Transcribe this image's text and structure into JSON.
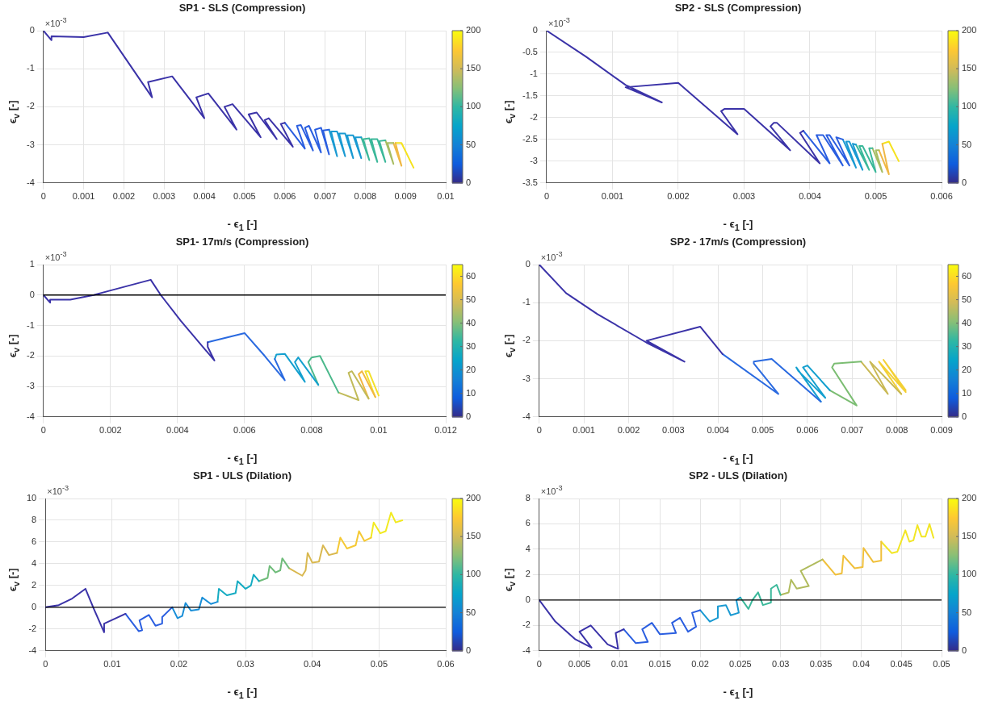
{
  "chart_data": [
    {
      "type": "line",
      "title": "SP1 - SLS (Compression)",
      "xlabel": "- ϵ$_{1}$ [-]",
      "ylabel": "ϵ$_{v}$ [-]",
      "annotations": [
        "×10$^{-3}$"
      ],
      "xlim": [
        0,
        0.01
      ],
      "xticks": [
        0,
        0.001,
        0.002,
        0.003,
        0.004,
        0.005,
        0.006,
        0.007,
        0.008,
        0.009,
        0.01
      ],
      "ylim": [
        -4,
        0
      ],
      "yticks": [
        -4,
        -3,
        -2,
        -1,
        0
      ],
      "grid": true,
      "clim": [
        0,
        200
      ],
      "cticks": [
        0,
        50,
        100,
        150,
        200
      ],
      "series": [
        {
          "color": "#3b33a8",
          "x": [
            0,
            0.0002,
            0.0002,
            0.001,
            0.0016,
            0.0027,
            0.0026,
            0.0032,
            0.004,
            0.0038,
            0.0041,
            0.0048,
            0.0045,
            0.0047,
            0.0054,
            0.0051,
            0.0053,
            0.0058,
            0.0055,
            0.0056,
            0.0062,
            0.0059,
            0.006
          ],
          "values": [
            0,
            -0.25,
            -0.15,
            -0.17,
            -0.05,
            -1.75,
            -1.35,
            -1.2,
            -2.3,
            -1.75,
            -1.65,
            -2.6,
            -2,
            -1.93,
            -2.8,
            -2.2,
            -2.15,
            -2.85,
            -2.35,
            -2.3,
            -3.05,
            -2.45,
            -2.42
          ]
        },
        {
          "color": "#2a5ee0",
          "x": [
            0.006,
            0.0065,
            0.0063,
            0.0064,
            0.0067,
            0.0065,
            0.0066,
            0.0069,
            0.00675,
            0.0069,
            0.0071,
            0.00695,
            0.0071
          ],
          "values": [
            -2.42,
            -3.1,
            -2.5,
            -2.48,
            -3.15,
            -2.55,
            -2.5,
            -3.2,
            -2.6,
            -2.55,
            -3.25,
            -2.62,
            -2.6
          ]
        },
        {
          "color": "#1a9ad2",
          "x": [
            0.0071,
            0.0073,
            0.00715,
            0.0073,
            0.0075,
            0.00735,
            0.0075,
            0.0077,
            0.00755,
            0.0077,
            0.0079,
            0.00775,
            0.0079
          ],
          "values": [
            -2.6,
            -3.3,
            -2.65,
            -2.65,
            -3.3,
            -2.7,
            -2.7,
            -3.35,
            -2.75,
            -2.75,
            -3.35,
            -2.8,
            -2.8
          ]
        },
        {
          "color": "#3bb89a",
          "x": [
            0.0079,
            0.0081,
            0.00795,
            0.0081,
            0.0083,
            0.00815,
            0.0083,
            0.0085,
            0.00835,
            0.0085
          ],
          "values": [
            -2.8,
            -3.4,
            -2.85,
            -2.83,
            -3.45,
            -2.85,
            -2.85,
            -3.45,
            -2.9,
            -2.88
          ]
        },
        {
          "color": "#a8bd62",
          "x": [
            0.0085,
            0.0087,
            0.00855,
            0.0087
          ],
          "values": [
            -2.88,
            -3.5,
            -2.95,
            -2.95
          ]
        },
        {
          "color": "#f0b845",
          "x": [
            0.0087,
            0.0089,
            0.00875
          ],
          "values": [
            -2.95,
            -3.55,
            -2.95
          ]
        },
        {
          "color": "#f5e21e",
          "x": [
            0.00875,
            0.0089,
            0.0092
          ],
          "values": [
            -2.95,
            -2.95,
            -3.6
          ]
        }
      ]
    },
    {
      "type": "line",
      "title": "SP2 - SLS (Compression)",
      "xlabel": "- ϵ$_{1}$ [-]",
      "ylabel": "ϵ$_{v}$ [-]",
      "annotations": [
        "×10$^{-3}$"
      ],
      "xlim": [
        0,
        0.006
      ],
      "xticks": [
        0,
        0.001,
        0.002,
        0.003,
        0.004,
        0.005,
        0.006
      ],
      "ylim": [
        -3.5,
        0
      ],
      "yticks": [
        -3.5,
        -3,
        -2.5,
        -2,
        -1.5,
        -1,
        -0.5,
        0
      ],
      "grid": true,
      "clim": [
        0,
        200
      ],
      "cticks": [
        0,
        50,
        100,
        150,
        200
      ],
      "series": [
        {
          "color": "#3b33a8",
          "x": [
            0,
            0.0006,
            0.0012,
            0.00175,
            0.0012,
            0.002,
            0.0029,
            0.00265,
            0.0027,
            0.003,
            0.0037,
            0.0034,
            0.00345,
            0.0035,
            0.00415,
            0.00385,
            0.0039
          ],
          "values": [
            0,
            -0.6,
            -1.25,
            -1.65,
            -1.3,
            -1.2,
            -2.38,
            -1.85,
            -1.8,
            -1.8,
            -2.75,
            -2.2,
            -2.12,
            -2.12,
            -3.05,
            -2.35,
            -2.3
          ]
        },
        {
          "color": "#2a5ee0",
          "x": [
            0.0039,
            0.0043,
            0.0041,
            0.0042,
            0.0045,
            0.00425,
            0.0043,
            0.0046,
            0.0044,
            0.0045
          ],
          "values": [
            -2.3,
            -3.05,
            -2.4,
            -2.4,
            -3.1,
            -2.4,
            -2.4,
            -3.1,
            -2.45,
            -2.5
          ]
        },
        {
          "color": "#1a9ad2",
          "x": [
            0.0045,
            0.0047,
            0.00455,
            0.0046,
            0.0048,
            0.00465,
            0.0047
          ],
          "values": [
            -2.5,
            -3.15,
            -2.55,
            -2.55,
            -3.2,
            -2.6,
            -2.62
          ]
        },
        {
          "color": "#3bb89a",
          "x": [
            0.0047,
            0.0049,
            0.00475,
            0.0048,
            0.005,
            0.0049,
            0.00495
          ],
          "values": [
            -2.62,
            -3.2,
            -2.65,
            -2.65,
            -3.25,
            -2.7,
            -2.7
          ]
        },
        {
          "color": "#a8bd62",
          "x": [
            0.00495,
            0.0051,
            0.005,
            0.00505
          ],
          "values": [
            -2.7,
            -3.25,
            -2.75,
            -2.75
          ]
        },
        {
          "color": "#f0b845",
          "x": [
            0.00505,
            0.0052,
            0.0051
          ],
          "values": [
            -2.75,
            -3.3,
            -2.6
          ]
        },
        {
          "color": "#f5e21e",
          "x": [
            0.0051,
            0.0052,
            0.00535
          ],
          "values": [
            -2.6,
            -2.55,
            -3
          ]
        }
      ]
    },
    {
      "type": "line",
      "title": "SP1- 17m/s (Compression)",
      "xlabel": "- ϵ$_{1}$ [-]",
      "ylabel": "ϵ$_{v}$ [-]",
      "annotations": [
        "×10$^{-3}$"
      ],
      "xlim": [
        0,
        0.012
      ],
      "xticks": [
        0,
        0.002,
        0.004,
        0.006,
        0.008,
        0.01,
        0.012
      ],
      "ylim": [
        -4,
        1
      ],
      "yticks": [
        -4,
        -3,
        -2,
        -1,
        0,
        1
      ],
      "grid": true,
      "clim": [
        0,
        65
      ],
      "cticks": [
        0,
        10,
        20,
        30,
        40,
        50,
        60
      ],
      "ref_lines": [
        {
          "axis": "y",
          "value": 0,
          "color": "#000000"
        }
      ],
      "series": [
        {
          "color": "#3b33a8",
          "x": [
            0,
            0.0002,
            0.0002,
            0.0008,
            0.0015,
            0.002,
            0.0032,
            0.0035,
            0.0041,
            0.0051,
            0.0049,
            0.0049
          ],
          "values": [
            0,
            -0.25,
            -0.15,
            -0.15,
            0,
            0.15,
            0.5,
            0,
            -0.85,
            -2.15,
            -1.7,
            -1.55
          ]
        },
        {
          "color": "#2a6ae0",
          "x": [
            0.0049,
            0.006,
            0.0066,
            0.0072,
            0.0069
          ],
          "values": [
            -1.55,
            -1.25,
            -2,
            -2.8,
            -2.1
          ]
        },
        {
          "color": "#14a0cf",
          "x": [
            0.0069,
            0.00695,
            0.0072,
            0.0078,
            0.0075,
            0.0076,
            0.0082
          ],
          "values": [
            -2.1,
            -1.95,
            -1.93,
            -2.85,
            -2.2,
            -2.05,
            -2.95
          ]
        },
        {
          "color": "#4cb98c",
          "x": [
            0.0082,
            0.0079,
            0.008,
            0.00825,
            0.0088
          ],
          "values": [
            -2.95,
            -2.2,
            -2.05,
            -2,
            -3.2
          ]
        },
        {
          "color": "#c1bb5a",
          "x": [
            0.0088,
            0.0094,
            0.0091,
            0.0092,
            0.0097
          ],
          "values": [
            -3.2,
            -3.45,
            -2.55,
            -2.5,
            -3.4
          ]
        },
        {
          "color": "#f2b640",
          "x": [
            0.0097,
            0.0094,
            0.0095,
            0.0099
          ],
          "values": [
            -3.4,
            -2.6,
            -2.5,
            -3.35
          ]
        },
        {
          "color": "#f3e02a",
          "x": [
            0.0099,
            0.0096,
            0.0097,
            0.01
          ],
          "values": [
            -3.35,
            -2.5,
            -2.5,
            -3.3
          ]
        }
      ]
    },
    {
      "type": "line",
      "title": "SP2 - 17m/s (Compression)",
      "xlabel": "- ϵ$_{1}$ [-]",
      "ylabel": "ϵ$_{v}$ [-]",
      "annotations": [
        "×10$^{-3}$"
      ],
      "xlim": [
        0,
        0.009
      ],
      "xticks": [
        0,
        0.001,
        0.002,
        0.003,
        0.004,
        0.005,
        0.006,
        0.007,
        0.008,
        0.009
      ],
      "ylim": [
        -4,
        0
      ],
      "yticks": [
        -4,
        -3,
        -2,
        -1,
        0
      ],
      "grid": true,
      "clim": [
        0,
        65
      ],
      "cticks": [
        0,
        10,
        20,
        30,
        40,
        50,
        60
      ],
      "series": [
        {
          "color": "#3b33a8",
          "x": [
            0,
            0.0006,
            0.0013,
            0.0024,
            0.00325,
            0.0024,
            0.0036,
            0.0041
          ],
          "values": [
            0,
            -0.75,
            -1.3,
            -2.05,
            -2.55,
            -2,
            -1.63,
            -2.35
          ]
        },
        {
          "color": "#2a6ae0",
          "x": [
            0.0041,
            0.00535,
            0.0048,
            0.0048,
            0.0052,
            0.0063
          ],
          "values": [
            -2.35,
            -3.4,
            -2.6,
            -2.55,
            -2.48,
            -3.6
          ]
        },
        {
          "color": "#14a0cf",
          "x": [
            0.0063,
            0.00575,
            0.0058,
            0.0064,
            0.0059,
            0.006,
            0.0065
          ],
          "values": [
            -3.6,
            -2.7,
            -2.8,
            -3.5,
            -2.7,
            -2.65,
            -3.3
          ]
        },
        {
          "color": "#7bbd72",
          "x": [
            0.0065,
            0.0071,
            0.00655,
            0.0066,
            0.0072
          ],
          "values": [
            -3.3,
            -3.7,
            -2.7,
            -2.6,
            -2.55
          ]
        },
        {
          "color": "#c9b955",
          "x": [
            0.0072,
            0.0078,
            0.0074,
            0.0081
          ],
          "values": [
            -2.55,
            -3.4,
            -2.55,
            -3.4
          ]
        },
        {
          "color": "#f3d035",
          "x": [
            0.0081,
            0.0076,
            0.0082,
            0.0077,
            0.0082
          ],
          "values": [
            -3.4,
            -2.55,
            -3.35,
            -2.5,
            -3.3
          ]
        }
      ]
    },
    {
      "type": "line",
      "title": "SP1 - ULS (Dilation)",
      "xlabel": "- ϵ$_{1}$ [-]",
      "ylabel": "ϵ$_{v}$ [-]",
      "annotations": [
        "×10$^{-3}$"
      ],
      "xlim": [
        0,
        0.06
      ],
      "xticks": [
        0,
        0.01,
        0.02,
        0.03,
        0.04,
        0.05,
        0.06
      ],
      "ylim": [
        -4,
        10
      ],
      "yticks": [
        -4,
        -2,
        0,
        2,
        4,
        6,
        8,
        10
      ],
      "grid": true,
      "clim": [
        0,
        200
      ],
      "cticks": [
        0,
        50,
        100,
        150,
        200
      ],
      "ref_lines": [
        {
          "axis": "y",
          "value": 0,
          "color": "#000000"
        }
      ],
      "series": [
        {
          "color": "#3b33a8",
          "x": [
            0,
            0.002,
            0.004,
            0.006,
            0.0073,
            0.0088,
            0.0088,
            0.012
          ],
          "values": [
            0,
            0.2,
            0.8,
            1.7,
            -0.2,
            -2.3,
            -1.5,
            -0.6
          ]
        },
        {
          "color": "#2a5ee0",
          "x": [
            0.012,
            0.014,
            0.0145,
            0.0141,
            0.0155,
            0.0165,
            0.0175,
            0.0175,
            0.019
          ],
          "values": [
            -0.6,
            -2.2,
            -2.1,
            -1.2,
            -0.7,
            -1.7,
            -1.5,
            -0.9,
            0
          ]
        },
        {
          "color": "#1a8fd8",
          "x": [
            0.019,
            0.0198,
            0.0205,
            0.021,
            0.0218,
            0.023,
            0.0235,
            0.0248,
            0.0258
          ],
          "values": [
            0,
            -1,
            -0.8,
            0.4,
            -0.3,
            -0.2,
            0.9,
            0.3,
            0.5
          ]
        },
        {
          "color": "#15abc2",
          "x": [
            0.0258,
            0.026,
            0.0272,
            0.0285,
            0.0288,
            0.03,
            0.0308,
            0.0312,
            0.032
          ],
          "values": [
            0.5,
            1.7,
            1.1,
            1.3,
            2.4,
            1.7,
            2,
            3,
            2.4
          ]
        },
        {
          "color": "#6fbc7a",
          "x": [
            0.032,
            0.0333,
            0.0336,
            0.0345,
            0.0352,
            0.0355,
            0.0365
          ],
          "values": [
            2.4,
            2.7,
            3.8,
            3.2,
            3.4,
            4.5,
            3.6
          ]
        },
        {
          "color": "#d9b84f",
          "x": [
            0.0365,
            0.0385,
            0.039,
            0.0393,
            0.04,
            0.041,
            0.0416,
            0.0425,
            0.0437
          ],
          "values": [
            3.6,
            2.9,
            3.4,
            5,
            4.1,
            4.2,
            5.7,
            4.8,
            5
          ]
        },
        {
          "color": "#f5c934",
          "x": [
            0.0437,
            0.0442,
            0.0452,
            0.0465,
            0.047,
            0.0478,
            0.0488
          ],
          "values": [
            5,
            6.4,
            5.4,
            5.7,
            7,
            6.1,
            6.4
          ]
        },
        {
          "color": "#f2ea20",
          "x": [
            0.0488,
            0.0492,
            0.0502,
            0.051,
            0.0518,
            0.0525,
            0.0535
          ],
          "values": [
            6.4,
            7.8,
            6.8,
            7,
            8.7,
            7.8,
            8
          ]
        }
      ]
    },
    {
      "type": "line",
      "title": "SP2 - ULS (Dilation)",
      "xlabel": "- ϵ$_{1}$ [-]",
      "ylabel": "ϵ$_{v}$ [-]",
      "annotations": [
        "×10$^{-3}$"
      ],
      "xlim": [
        0,
        0.05
      ],
      "xticks": [
        0,
        0.005,
        0.01,
        0.015,
        0.02,
        0.025,
        0.03,
        0.035,
        0.04,
        0.045,
        0.05
      ],
      "ylim": [
        -4,
        8
      ],
      "yticks": [
        -4,
        -2,
        0,
        2,
        4,
        6,
        8
      ],
      "grid": true,
      "clim": [
        0,
        200
      ],
      "cticks": [
        0,
        50,
        100,
        150,
        200
      ],
      "ref_lines": [
        {
          "axis": "y",
          "value": 0,
          "color": "#000000"
        }
      ],
      "series": [
        {
          "color": "#3b33a8",
          "x": [
            0,
            0.002,
            0.0045,
            0.0065,
            0.005,
            0.0064,
            0.0085,
            0.0098,
            0.0095,
            0.0105
          ],
          "values": [
            0,
            -1.7,
            -3.1,
            -3.75,
            -2.5,
            -2,
            -3.5,
            -3.85,
            -2.6,
            -2.3
          ]
        },
        {
          "color": "#2a5ee0",
          "x": [
            0.0105,
            0.012,
            0.0135,
            0.0128,
            0.014,
            0.015,
            0.017,
            0.0165,
            0.0175,
            0.0185,
            0.0195,
            0.019,
            0.02
          ],
          "values": [
            -2.3,
            -3.4,
            -3.3,
            -2.3,
            -1.8,
            -2.7,
            -2.6,
            -1.8,
            -1.4,
            -2.5,
            -2.1,
            -1,
            -0.8
          ]
        },
        {
          "color": "#1a9ad2",
          "x": [
            0.02,
            0.0212,
            0.0222,
            0.0222,
            0.0232,
            0.0238,
            0.0248,
            0.0245,
            0.025
          ],
          "values": [
            -0.8,
            -1.7,
            -1.4,
            -0.5,
            -0.4,
            -1.2,
            -1,
            0,
            0.2
          ]
        },
        {
          "color": "#3bb89a",
          "x": [
            0.025,
            0.026,
            0.0265,
            0.0272,
            0.0278,
            0.0288,
            0.0288,
            0.0295,
            0.03
          ],
          "values": [
            0.2,
            -0.7,
            0,
            0.6,
            -0.4,
            -0.2,
            0.9,
            1.2,
            0.4
          ]
        },
        {
          "color": "#b0bb5d",
          "x": [
            0.03,
            0.031,
            0.0313,
            0.032,
            0.0335,
            0.0325,
            0.0352
          ],
          "values": [
            0.4,
            0.6,
            1.6,
            0.9,
            1.1,
            2.3,
            3.2
          ]
        },
        {
          "color": "#f0c03c",
          "x": [
            0.0352,
            0.0368,
            0.0376,
            0.0378,
            0.0392,
            0.0402,
            0.0403,
            0.0415,
            0.0425,
            0.0425
          ],
          "values": [
            3.2,
            2,
            2.1,
            3.5,
            2.5,
            2.6,
            4.1,
            3,
            3.1,
            4.6
          ]
        },
        {
          "color": "#f2e625",
          "x": [
            0.0425,
            0.0438,
            0.0445,
            0.0455,
            0.046,
            0.0465,
            0.047,
            0.0475,
            0.048,
            0.0485,
            0.049
          ],
          "values": [
            4.6,
            3.7,
            3.8,
            5.5,
            4.6,
            4.7,
            5.9,
            5,
            5,
            6,
            4.9
          ]
        }
      ]
    }
  ]
}
